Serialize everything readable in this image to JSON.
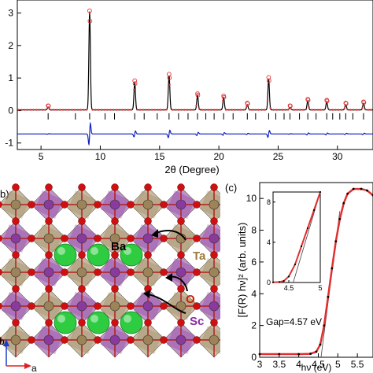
{
  "chart_data": [
    {
      "type": "line",
      "panel": "a",
      "xlabel": "2θ (Degree)",
      "ylabel": "",
      "xlim": [
        3,
        33
      ],
      "ylim": [
        -1.2,
        3.4
      ],
      "x_ticks": [
        5,
        10,
        15,
        20,
        25,
        30
      ],
      "y_ticks": [
        -1,
        0,
        1,
        2,
        3
      ],
      "peaks": [
        {
          "x": 5.6,
          "y": 0.08
        },
        {
          "x": 9.1,
          "y": 3.0
        },
        {
          "x": 12.9,
          "y": 0.85
        },
        {
          "x": 15.8,
          "y": 1.05
        },
        {
          "x": 18.2,
          "y": 0.45
        },
        {
          "x": 20.4,
          "y": 0.38
        },
        {
          "x": 22.4,
          "y": 0.16
        },
        {
          "x": 24.2,
          "y": 0.95
        },
        {
          "x": 26.0,
          "y": 0.08
        },
        {
          "x": 27.5,
          "y": 0.28
        },
        {
          "x": 29.1,
          "y": 0.25
        },
        {
          "x": 30.7,
          "y": 0.16
        },
        {
          "x": 32.2,
          "y": 0.2
        }
      ],
      "bragg_positions": [
        5.6,
        7.9,
        9.1,
        10.4,
        11.2,
        12.9,
        13.7,
        14.8,
        15.8,
        16.6,
        17.4,
        18.2,
        18.9,
        19.6,
        20.4,
        21.2,
        22.4,
        23.1,
        24.2,
        24.8,
        25.5,
        26.0,
        26.8,
        27.5,
        28.2,
        29.1,
        29.6,
        30.2,
        30.7,
        31.3,
        32.2
      ],
      "bragg_level": -0.18,
      "difference_offset": -0.72,
      "series": [
        {
          "role": "observed",
          "color": "#e03030"
        },
        {
          "role": "calculated",
          "color": "#000000"
        },
        {
          "role": "difference",
          "color": "#1020c0"
        }
      ]
    },
    {
      "type": "line",
      "panel": "c",
      "xlabel": "hν (eV)",
      "ylabel": "[F(R) hν]² (arb. units)",
      "xlim": [
        3.0,
        5.9
      ],
      "ylim": [
        0,
        11
      ],
      "x_ticks": [
        3,
        3.5,
        4,
        4.5,
        5,
        5.5
      ],
      "x_tick_labels": [
        "3",
        "3.5",
        "4",
        "4.5",
        "5",
        "5.5"
      ],
      "y_ticks": [
        0,
        2,
        4,
        6,
        8,
        10
      ],
      "annotation": "Gap=4.57 eV",
      "gap": 4.57,
      "points": [
        [
          3.0,
          0.2
        ],
        [
          3.5,
          0.2
        ],
        [
          4.0,
          0.2
        ],
        [
          4.3,
          0.22
        ],
        [
          4.45,
          0.35
        ],
        [
          4.55,
          0.8
        ],
        [
          4.65,
          2.0
        ],
        [
          4.75,
          3.8
        ],
        [
          4.85,
          5.6
        ],
        [
          4.95,
          7.3
        ],
        [
          5.05,
          8.7
        ],
        [
          5.15,
          9.7
        ],
        [
          5.25,
          10.3
        ],
        [
          5.4,
          10.6
        ],
        [
          5.6,
          10.6
        ],
        [
          5.75,
          10.5
        ],
        [
          5.9,
          10.2
        ]
      ],
      "inset": {
        "xlim": [
          4.25,
          5.0
        ],
        "ylim": [
          0,
          9
        ],
        "x_ticks": [
          4.5,
          5
        ],
        "x_tick_labels": [
          "4.5",
          "5"
        ],
        "y_ticks": [
          0,
          4,
          8
        ],
        "points": [
          [
            4.25,
            0.02
          ],
          [
            4.35,
            0.05
          ],
          [
            4.42,
            0.15
          ],
          [
            4.5,
            0.6
          ],
          [
            4.6,
            1.8
          ],
          [
            4.7,
            3.6
          ],
          [
            4.8,
            5.4
          ],
          [
            4.9,
            7.2
          ],
          [
            5.0,
            9.0
          ]
        ]
      }
    }
  ],
  "labels": {
    "panel_b": "b)",
    "panel_c": "(c)",
    "ba": "Ba",
    "ta": "Ta",
    "o": "O",
    "sc": "Sc",
    "axis_b": "b",
    "axis_a": "a"
  },
  "colors": {
    "observed": "#e03030",
    "calculated": "#000000",
    "difference": "#1020c0",
    "ba": "#2ecc40",
    "ta": "#9c8458",
    "sc": "#8a3a9c",
    "o": "#d01010"
  }
}
